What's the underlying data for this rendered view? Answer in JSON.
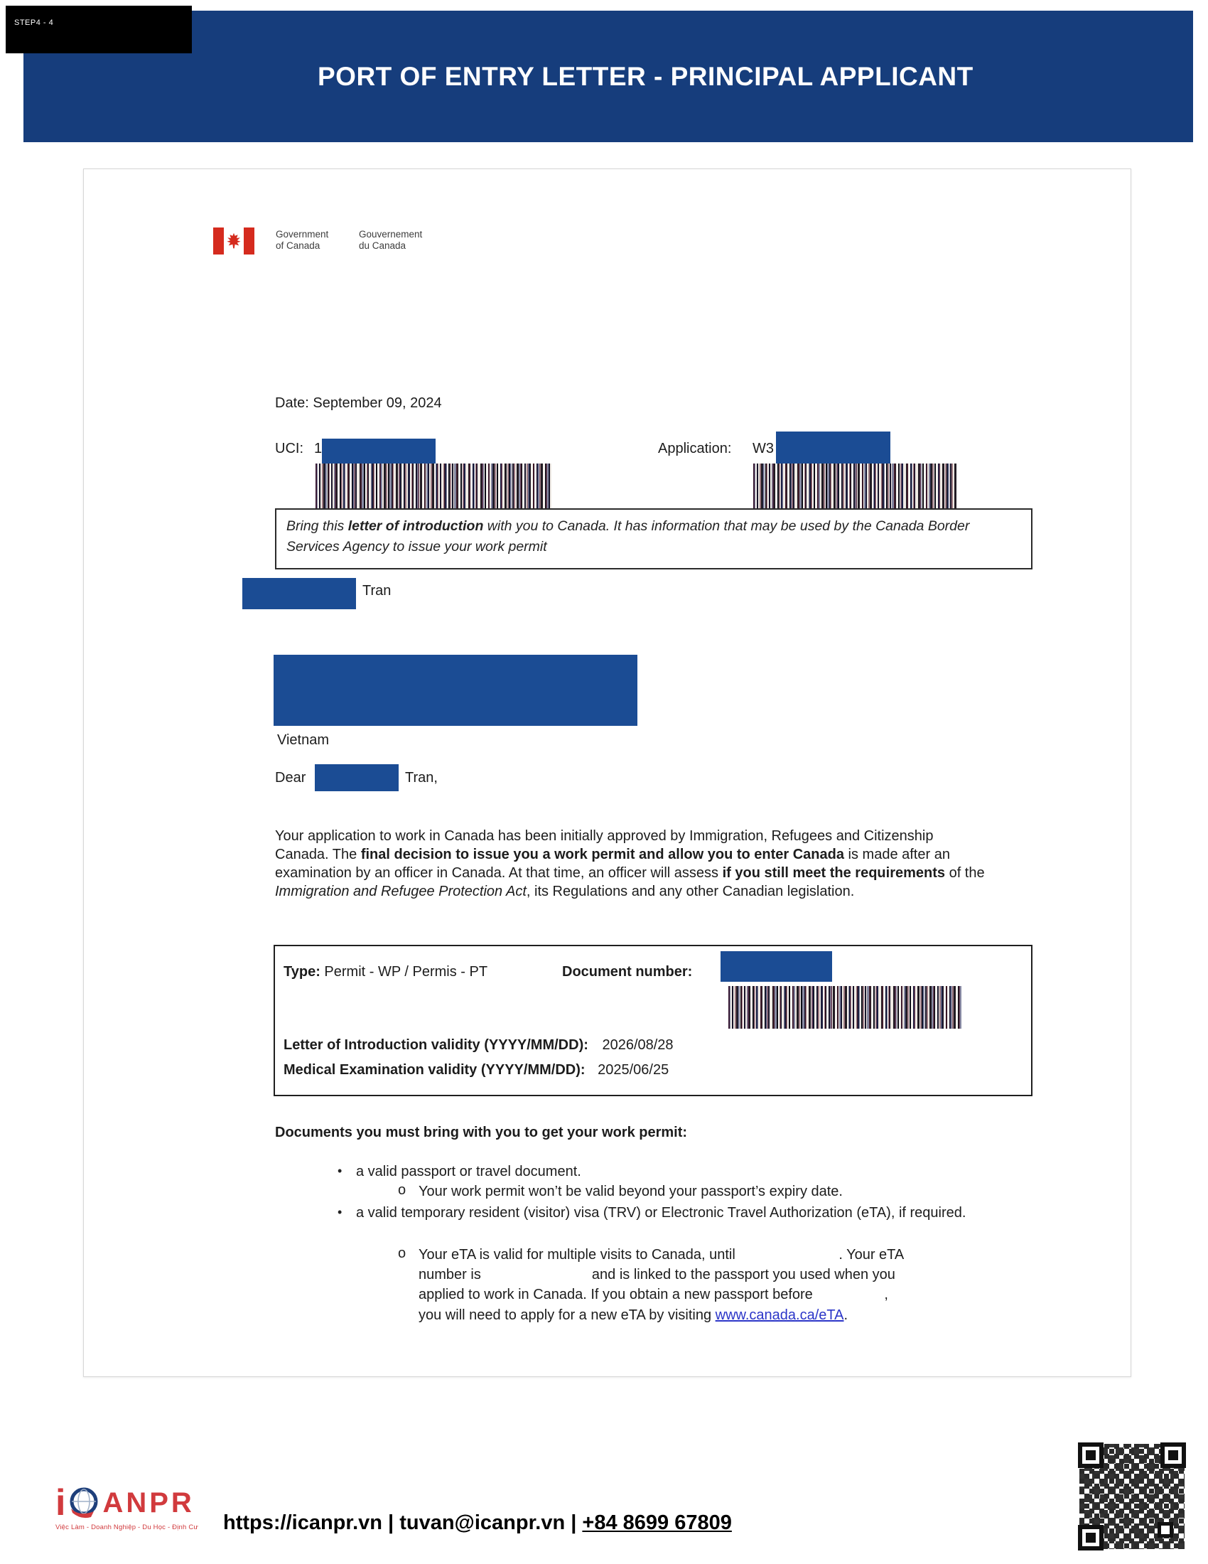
{
  "step_label": "STEP4 - 4",
  "header": {
    "title": "PORT OF ENTRY LETTER - PRINCIPAL APPLICANT"
  },
  "canada_wordmark": {
    "en_line1": "Government",
    "en_line2": "of Canada",
    "fr_line1": "Gouvernement",
    "fr_line2": "du Canada"
  },
  "letter": {
    "date_line": "Date: September 09, 2024",
    "uci_label": "UCI:",
    "uci_visible_value": "1",
    "application_label": "Application:",
    "application_visible_value": "W3",
    "intro_box_segments": [
      {
        "text": "Bring this ",
        "italic": true
      },
      {
        "text": "letter of introduction",
        "italic": true,
        "bold": true
      },
      {
        "text": " with you to Canada. It has information that may be used by the Canada Border Services Agency to issue your work permit",
        "italic": true
      }
    ],
    "recipient": {
      "name_visible_suffix": "Tran",
      "country": "Vietnam"
    },
    "salutation": {
      "prefix": "Dear",
      "suffix": "Tran,"
    },
    "body_segments": [
      {
        "text": "Your application to work in Canada has been initially approved by Immigration, Refugees and Citizenship Canada. The "
      },
      {
        "text": "final decision to issue you a work permit and allow you to enter Canada",
        "bold": true
      },
      {
        "text": " is made after an examination by an officer in Canada. At that time, an officer will assess "
      },
      {
        "text": "if you still meet the requirements",
        "bold": true
      },
      {
        "text": " of the "
      },
      {
        "text": "Immigration and Refugee Protection Act",
        "italic": true
      },
      {
        "text": ", its Regulations and any other Canadian legislation."
      }
    ],
    "permit_box": {
      "type_label": "Type:",
      "type_value": "Permit - WP / Permis - PT",
      "document_number_label": "Document number:",
      "loi_validity_label": "Letter of Introduction validity (YYYY/MM/DD):",
      "loi_validity_value": "2026/08/28",
      "medical_validity_label": "Medical Examination validity (YYYY/MM/DD):",
      "medical_validity_value": "2025/06/25"
    },
    "documents_heading": "Documents you must bring with you to get your work permit:",
    "bullets": {
      "bullet1": "a valid passport or travel document.",
      "sub1_marker": "o",
      "sub1": "Your work permit won’t be valid beyond your passport’s expiry date.",
      "bullet2": "a valid temporary resident (visitor) visa (TRV) or Electronic Travel Authorization (eTA), if required.",
      "sub2_marker": "o",
      "sub2_lines": [
        [
          {
            "text": "Your eTA is valid for multiple visits to Canada, until "
          },
          {
            "gap": 140
          },
          {
            "text": ". Your eTA"
          }
        ],
        [
          {
            "text": "number is "
          },
          {
            "gap": 145
          },
          {
            "text": " and is linked to the passport you used when you"
          }
        ],
        [
          {
            "text": "applied to work in Canada. If you obtain a new passport before "
          },
          {
            "gap": 95
          },
          {
            "text": ","
          }
        ],
        [
          {
            "text": "you will need to apply for a new eTA by visiting "
          },
          {
            "text": "www.canada.ca/eTA",
            "link": true
          },
          {
            "text": "."
          }
        ]
      ]
    }
  },
  "footer": {
    "brand": {
      "first_letter": "i",
      "rest": "ANPR",
      "tagline": "Việc Làm - Doanh Nghiệp - Du Học - Định Cư"
    },
    "contact": {
      "website": "https://icanpr.vn",
      "separator": " | ",
      "email": "tuvan@icanpr.vn",
      "phone": "+84 8699 67809"
    }
  },
  "colors": {
    "banner_blue": "#163d7c",
    "redaction_blue": "#1b4c94",
    "link_blue": "#2b35c8",
    "brand_red": "#d13a3d",
    "flag_red": "#d52b1e"
  }
}
